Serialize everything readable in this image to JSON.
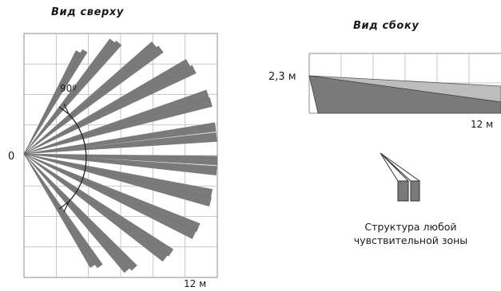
{
  "top_view": {
    "title": "Вид сверху",
    "origin_label": "0",
    "angle_label": "90º",
    "range_label": "12 м"
  },
  "side_view": {
    "title": "Вид сбоку",
    "height_label": "2,3 м",
    "range_label": "12 м"
  },
  "zone_structure": {
    "caption_line1": "Структура любой",
    "caption_line2": "чувствительной зоны"
  },
  "colors": {
    "beam": "#7a7a7a",
    "beam_light": "#bdbdbd",
    "grid": "#b8b8b8",
    "frame": "#8c8c8c"
  }
}
